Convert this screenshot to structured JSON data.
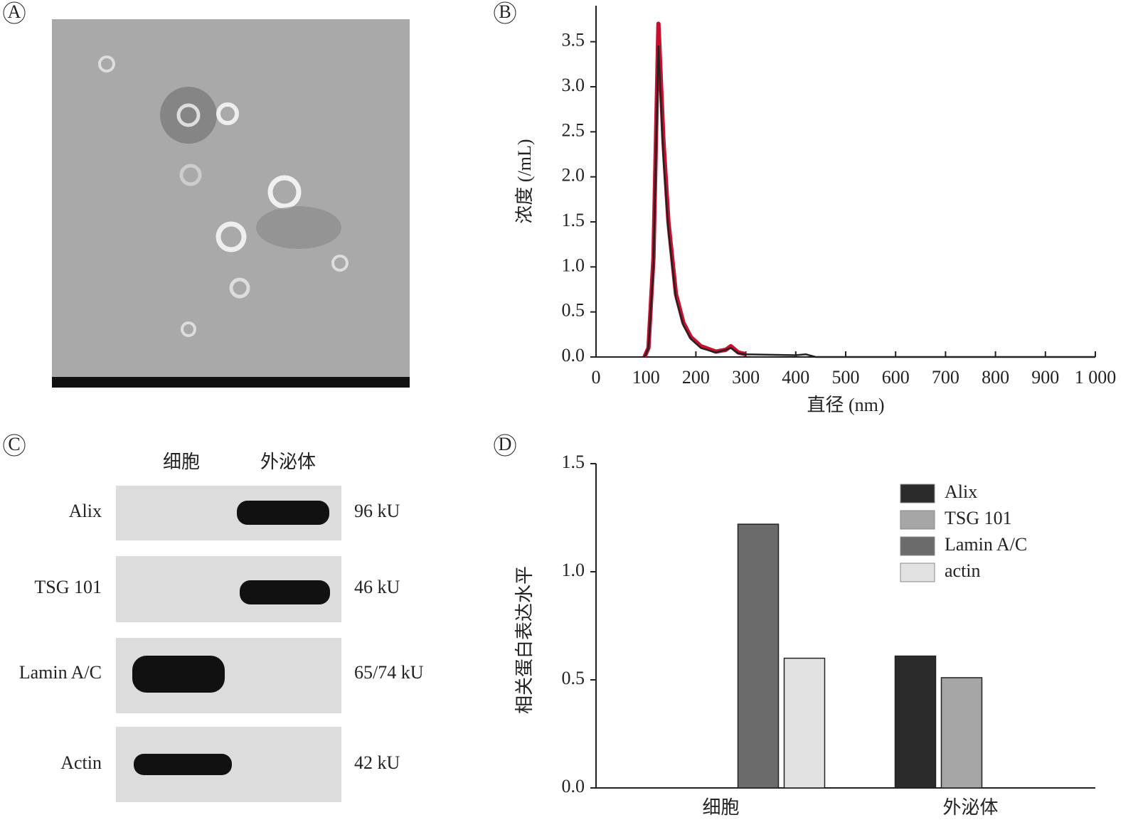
{
  "panel_labels": [
    "A",
    "B",
    "C",
    "D"
  ],
  "blot": {
    "column_headers": [
      "细胞",
      "外泌体"
    ],
    "rows": [
      {
        "protein": "Alix",
        "size": "96 kU"
      },
      {
        "protein": "TSG 101",
        "size": "46 kU"
      },
      {
        "protein": "Lamin A/C",
        "size": "65/74 kU"
      },
      {
        "protein": "Actin",
        "size": "42 kU"
      }
    ]
  },
  "chart_data": [
    {
      "type": "line",
      "xlabel": "直径 (nm)",
      "ylabel": "浓度 (/mL)",
      "xlim": [
        0,
        1000
      ],
      "xticks": [
        0,
        100,
        200,
        300,
        400,
        500,
        600,
        700,
        800,
        900,
        {
          "value": 1000,
          "label": "1 000"
        }
      ],
      "ylim": [
        0,
        3.9
      ],
      "yticks": [
        {
          "value": 0,
          "label": "0.0"
        },
        0.5,
        {
          "value": 1,
          "label": "1.0"
        },
        1.5,
        {
          "value": 2,
          "label": "2.0"
        },
        2.5,
        {
          "value": 3,
          "label": "3.0"
        },
        3.5
      ],
      "series": [
        {
          "color": "#c8102e",
          "x": [
            97,
            105,
            115,
            125,
            135,
            145,
            160,
            175,
            190,
            210,
            240,
            260,
            270,
            285,
            300
          ],
          "values": [
            0,
            0.1,
            1.1,
            3.7,
            2.4,
            1.5,
            0.7,
            0.38,
            0.22,
            0.12,
            0.06,
            0.08,
            0.12,
            0.05,
            0.03
          ]
        },
        {
          "color": "#222222",
          "x": [
            97,
            105,
            115,
            125,
            135,
            145,
            160,
            175,
            190,
            210,
            240,
            260,
            270,
            285,
            300,
            400,
            420,
            440,
            1000
          ],
          "values": [
            0,
            0.1,
            1,
            3.45,
            2.2,
            1.4,
            0.65,
            0.35,
            0.2,
            0.1,
            0.05,
            0.08,
            0.1,
            0.04,
            0.03,
            0.02,
            0.03,
            0,
            0
          ]
        }
      ]
    },
    {
      "type": "bar",
      "ylabel": "相关蛋白表达水平",
      "categories": [
        "细胞",
        "外泌体"
      ],
      "ylim": [
        0,
        1.5
      ],
      "yticks": [
        {
          "value": 0,
          "label": "0.0"
        },
        0.5,
        {
          "value": 1,
          "label": "1.0"
        },
        1.5
      ],
      "series": [
        {
          "name": "Alix",
          "color": "#2b2b2b",
          "values": [
            0,
            0.61
          ]
        },
        {
          "name": "TSG 101",
          "color": "#a6a6a6",
          "values": [
            0,
            0.51
          ]
        },
        {
          "name": "Lamin A/C",
          "color": "#6b6b6b",
          "values": [
            1.22,
            0
          ]
        },
        {
          "name": "actin",
          "color": "#e2e2e2",
          "values": [
            0.6,
            0
          ]
        }
      ]
    }
  ]
}
